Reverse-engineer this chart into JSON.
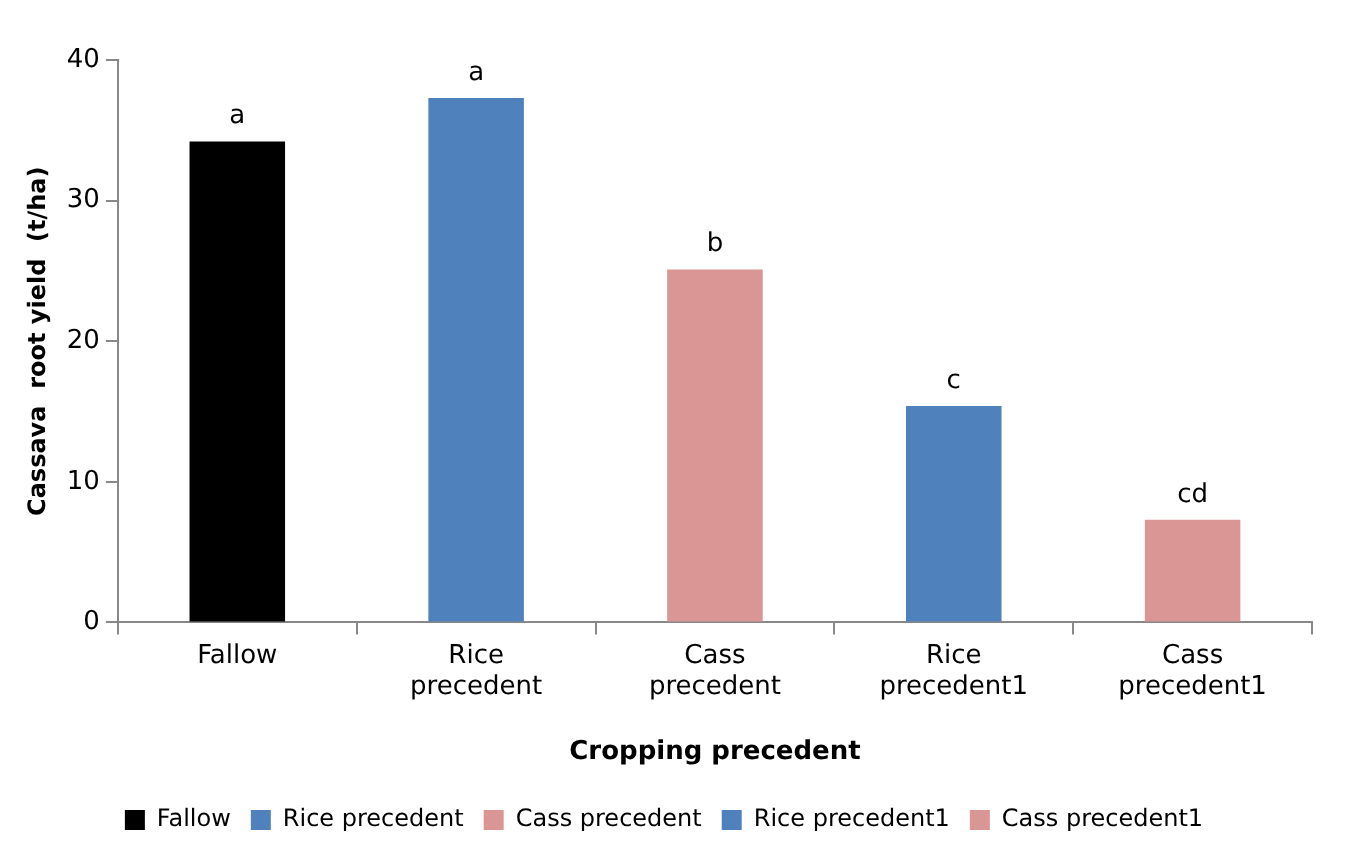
{
  "chart_data": {
    "type": "bar",
    "xlabel": "Cropping precedent",
    "ylabel": "Cassava  root yield  (t/ha)",
    "categories": [
      "Fallow",
      "Rice precedent",
      "Cass precedent",
      "Rice precedent1",
      "Cass precedent1"
    ],
    "series": [
      {
        "name": "Fallow",
        "color": "#000000",
        "values": [
          34.2,
          null,
          null,
          null,
          null
        ]
      },
      {
        "name": "Rice precedent",
        "color": "#4f81bd",
        "values": [
          null,
          37.3,
          null,
          null,
          null
        ]
      },
      {
        "name": "Cass precedent",
        "color": "#d99694",
        "values": [
          null,
          null,
          25.1,
          null,
          null
        ]
      },
      {
        "name": "Rice precedent1",
        "color": "#4f81bd",
        "values": [
          null,
          null,
          null,
          15.4,
          null
        ]
      },
      {
        "name": "Cass precedent1",
        "color": "#d99694",
        "values": [
          null,
          null,
          null,
          null,
          7.3
        ]
      }
    ],
    "ylim": [
      0,
      40
    ],
    "yticks": [
      0,
      10,
      20,
      30,
      40
    ],
    "grid": false,
    "legend": "bottom",
    "annotations": [
      {
        "text": "a",
        "x": "Fallow",
        "y": 34.2
      },
      {
        "text": "a",
        "x": "Rice precedent",
        "y": 37.3
      },
      {
        "text": "b",
        "x": "Cass precedent",
        "y": 25.1
      },
      {
        "text": "c",
        "x": "Rice precedent1",
        "y": 15.4
      },
      {
        "text": "cd",
        "x": "Cass precedent1",
        "y": 7.3
      }
    ]
  }
}
